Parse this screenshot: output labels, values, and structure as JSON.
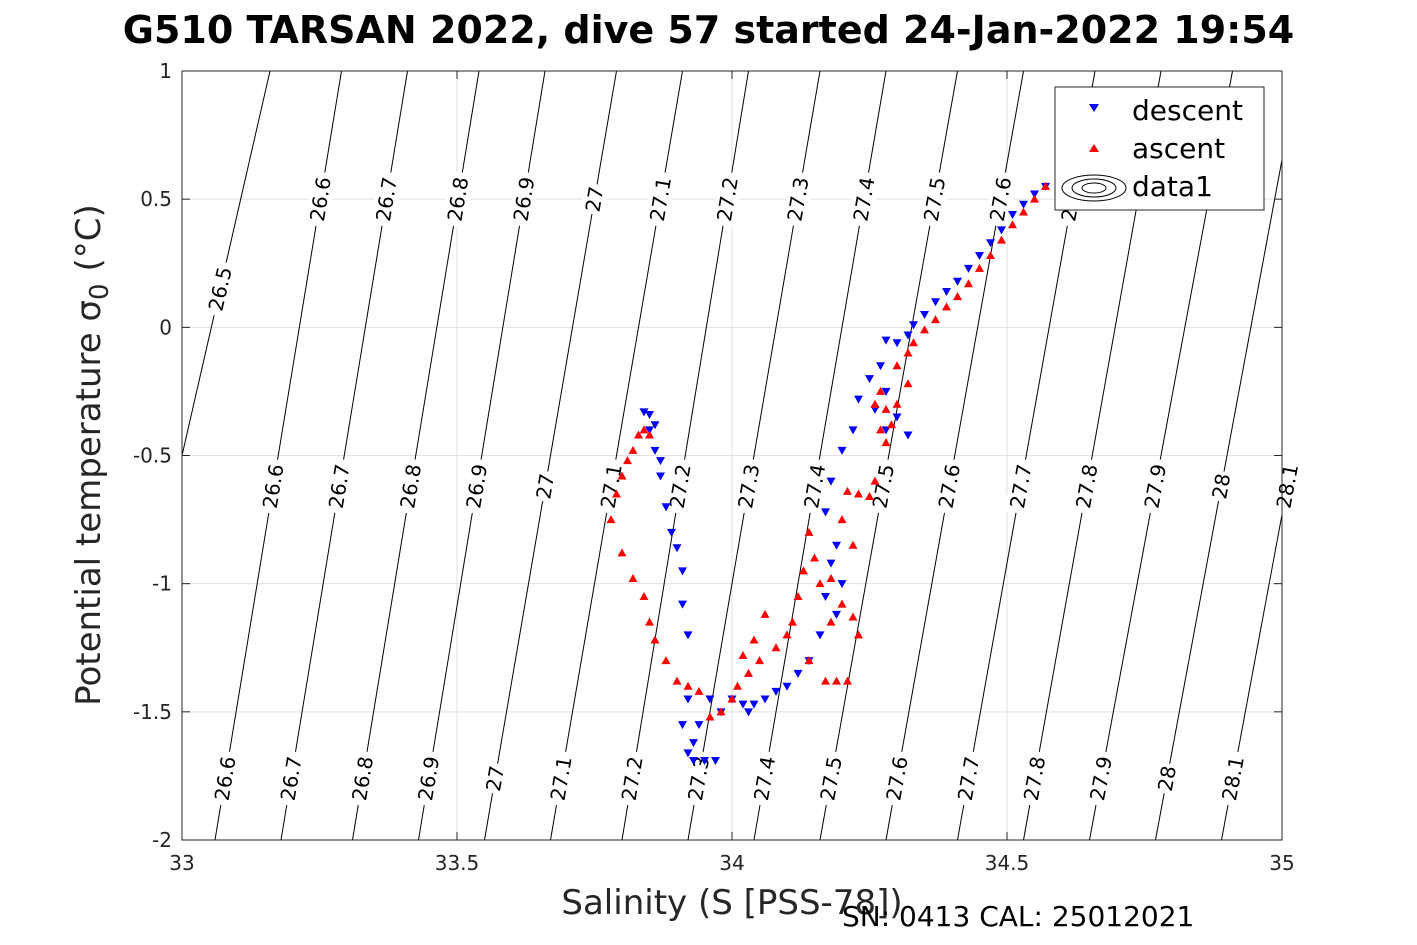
{
  "title": "G510 TARSAN 2022, dive 57 started 24-Jan-2022 19:54",
  "footer": "SN: 0413  CAL: 25012021",
  "colors": {
    "descent": "#0000ff",
    "ascent": "#ff0000",
    "grid": "#e2e2e2",
    "contour": "#000000"
  },
  "chart_data": {
    "type": "scatter",
    "xlabel": "Salinity (S [PSS-78])",
    "ylabel": "Potential temperature σ",
    "ylabel_subscript": "0",
    "ylabel_unit": "(°C)",
    "xlim": [
      33,
      35
    ],
    "ylim": [
      -2,
      1
    ],
    "xticks": [
      33,
      33.5,
      34,
      34.5,
      35
    ],
    "xtick_labels": [
      "33",
      "33.5",
      "34",
      "34.5",
      "35"
    ],
    "yticks": [
      -2,
      -1.5,
      -1,
      -0.5,
      0,
      0.5,
      1
    ],
    "ytick_labels": [
      "-2",
      "-1.5",
      "-1",
      "-0.5",
      "0",
      "0.5",
      "1"
    ],
    "grid": true,
    "legend": {
      "placement": "top-right",
      "entries": [
        "descent",
        "ascent",
        "data1"
      ]
    },
    "contours": {
      "levels": [
        26.5,
        26.6,
        26.7,
        26.8,
        26.9,
        27.0,
        27.1,
        27.2,
        27.3,
        27.4,
        27.5,
        27.6,
        27.7,
        27.8,
        27.9,
        28.0,
        28.1
      ],
      "level_labels": [
        "26.5",
        "26.6",
        "26.7",
        "26.8",
        "26.9",
        "27",
        "27.1",
        "27.2",
        "27.3",
        "27.4",
        "27.5",
        "27.6",
        "27.7",
        "27.8",
        "27.9",
        "28",
        "28.1"
      ],
      "line_x_at_bottom": [
        32.84,
        33.06,
        33.18,
        33.31,
        33.43,
        33.55,
        33.67,
        33.8,
        33.92,
        34.04,
        34.16,
        34.28,
        34.41,
        34.53,
        34.65,
        34.77,
        34.89
      ],
      "line_x_at_top": [
        33.16,
        33.29,
        33.41,
        33.54,
        33.66,
        33.79,
        33.91,
        34.03,
        34.16,
        34.28,
        34.41,
        34.53,
        34.66,
        34.78,
        34.91,
        35.03,
        35.15
      ],
      "label_rows": [
        {
          "y": 0.5,
          "labels": [
            "26.6",
            "26.7",
            "26.8",
            "26.9",
            "27",
            "27.1",
            "27.2",
            "27.3",
            "27.4",
            "27.5",
            "27.6",
            "27.7"
          ]
        },
        {
          "y": 0.15,
          "labels": [
            "26.5"
          ]
        },
        {
          "y": -0.62,
          "labels": [
            "26.6",
            "26.7",
            "26.8",
            "26.9",
            "27",
            "27.1",
            "27.2",
            "27.3",
            "27.4",
            "27.5",
            "27.6",
            "27.7",
            "27.8",
            "27.9",
            "28",
            "28.1"
          ]
        },
        {
          "y": -1.76,
          "labels": [
            "26.6",
            "26.7",
            "26.8",
            "26.9",
            "27",
            "27.1",
            "27.2",
            "27.3",
            "27.4",
            "27.5",
            "27.6",
            "27.7",
            "27.8",
            "27.9",
            "28",
            "28.1"
          ]
        }
      ]
    },
    "series": [
      {
        "name": "descent",
        "marker": "triangle-down",
        "points": [
          [
            34.57,
            0.55
          ],
          [
            34.55,
            0.52
          ],
          [
            34.53,
            0.48
          ],
          [
            34.51,
            0.44
          ],
          [
            34.49,
            0.38
          ],
          [
            34.47,
            0.33
          ],
          [
            34.45,
            0.28
          ],
          [
            34.43,
            0.23
          ],
          [
            34.41,
            0.18
          ],
          [
            34.39,
            0.14
          ],
          [
            34.37,
            0.1
          ],
          [
            34.35,
            0.05
          ],
          [
            34.33,
            0.01
          ],
          [
            34.32,
            -0.03
          ],
          [
            34.3,
            -0.06
          ],
          [
            34.28,
            -0.05
          ],
          [
            34.27,
            -0.15
          ],
          [
            34.28,
            -0.25
          ],
          [
            34.3,
            -0.35
          ],
          [
            34.32,
            -0.42
          ],
          [
            34.28,
            -0.4
          ],
          [
            34.26,
            -0.32
          ],
          [
            34.25,
            -0.2
          ],
          [
            34.23,
            -0.28
          ],
          [
            34.22,
            -0.4
          ],
          [
            34.2,
            -0.48
          ],
          [
            34.18,
            -0.6
          ],
          [
            34.17,
            -0.72
          ],
          [
            34.19,
            -0.85
          ],
          [
            34.18,
            -0.92
          ],
          [
            34.2,
            -1.0
          ],
          [
            34.17,
            -1.05
          ],
          [
            34.19,
            -1.12
          ],
          [
            34.16,
            -1.2
          ],
          [
            34.14,
            -1.3
          ],
          [
            34.12,
            -1.35
          ],
          [
            34.1,
            -1.4
          ],
          [
            34.08,
            -1.42
          ],
          [
            34.06,
            -1.45
          ],
          [
            34.04,
            -1.47
          ],
          [
            34.03,
            -1.5
          ],
          [
            34.02,
            -1.47
          ],
          [
            34.0,
            -1.45
          ],
          [
            33.98,
            -1.5
          ],
          [
            33.96,
            -1.45
          ],
          [
            33.94,
            -1.55
          ],
          [
            33.93,
            -1.62
          ],
          [
            33.92,
            -1.66
          ],
          [
            33.93,
            -1.69
          ],
          [
            33.95,
            -1.69
          ],
          [
            33.97,
            -1.69
          ],
          [
            33.91,
            -1.55
          ],
          [
            33.92,
            -1.45
          ],
          [
            33.92,
            -1.2
          ],
          [
            33.91,
            -1.08
          ],
          [
            33.91,
            -0.95
          ],
          [
            33.9,
            -0.86
          ],
          [
            33.89,
            -0.8
          ],
          [
            33.88,
            -0.7
          ],
          [
            33.87,
            -0.58
          ],
          [
            33.86,
            -0.48
          ],
          [
            33.85,
            -0.4
          ],
          [
            33.85,
            -0.34
          ],
          [
            33.84,
            -0.33
          ],
          [
            33.86,
            -0.38
          ],
          [
            33.87,
            -0.52
          ]
        ]
      },
      {
        "name": "ascent",
        "marker": "triangle-up",
        "points": [
          [
            34.57,
            0.55
          ],
          [
            34.55,
            0.5
          ],
          [
            34.53,
            0.45
          ],
          [
            34.51,
            0.4
          ],
          [
            34.49,
            0.34
          ],
          [
            34.47,
            0.28
          ],
          [
            34.45,
            0.23
          ],
          [
            34.43,
            0.17
          ],
          [
            34.41,
            0.12
          ],
          [
            34.39,
            0.08
          ],
          [
            34.37,
            0.03
          ],
          [
            34.35,
            -0.01
          ],
          [
            34.33,
            -0.06
          ],
          [
            34.32,
            -0.1
          ],
          [
            34.3,
            -0.15
          ],
          [
            34.32,
            -0.22
          ],
          [
            34.3,
            -0.3
          ],
          [
            34.29,
            -0.38
          ],
          [
            34.28,
            -0.45
          ],
          [
            34.27,
            -0.4
          ],
          [
            34.26,
            -0.3
          ],
          [
            34.27,
            -0.25
          ],
          [
            34.28,
            -0.32
          ],
          [
            34.26,
            -0.6
          ],
          [
            34.25,
            -0.66
          ],
          [
            34.23,
            -0.65
          ],
          [
            34.2,
            -0.75
          ],
          [
            34.22,
            -0.85
          ],
          [
            34.18,
            -0.98
          ],
          [
            34.2,
            -1.08
          ],
          [
            34.22,
            -1.13
          ],
          [
            34.18,
            -1.15
          ],
          [
            34.16,
            -1.0
          ],
          [
            34.15,
            -0.9
          ],
          [
            34.14,
            -0.8
          ],
          [
            34.13,
            -0.95
          ],
          [
            34.12,
            -1.05
          ],
          [
            34.11,
            -1.15
          ],
          [
            34.1,
            -1.2
          ],
          [
            34.08,
            -1.25
          ],
          [
            34.06,
            -1.12
          ],
          [
            34.05,
            -1.3
          ],
          [
            34.03,
            -1.35
          ],
          [
            34.04,
            -1.22
          ],
          [
            34.02,
            -1.28
          ],
          [
            34.01,
            -1.4
          ],
          [
            34.0,
            -1.45
          ],
          [
            33.98,
            -1.5
          ],
          [
            33.96,
            -1.52
          ],
          [
            33.94,
            -1.42
          ],
          [
            33.92,
            -1.4
          ],
          [
            33.9,
            -1.38
          ],
          [
            33.88,
            -1.3
          ],
          [
            33.86,
            -1.22
          ],
          [
            33.85,
            -1.15
          ],
          [
            33.84,
            -1.05
          ],
          [
            33.82,
            -0.98
          ],
          [
            33.8,
            -0.88
          ],
          [
            33.78,
            -0.75
          ],
          [
            33.79,
            -0.65
          ],
          [
            33.8,
            -0.58
          ],
          [
            33.81,
            -0.52
          ],
          [
            33.82,
            -0.48
          ],
          [
            33.83,
            -0.42
          ],
          [
            33.84,
            -0.4
          ],
          [
            33.85,
            -0.42
          ],
          [
            34.17,
            -1.38
          ],
          [
            34.19,
            -1.38
          ],
          [
            34.21,
            -1.38
          ],
          [
            34.21,
            -0.64
          ],
          [
            34.14,
            -1.3
          ],
          [
            34.23,
            -1.2
          ]
        ]
      }
    ]
  }
}
